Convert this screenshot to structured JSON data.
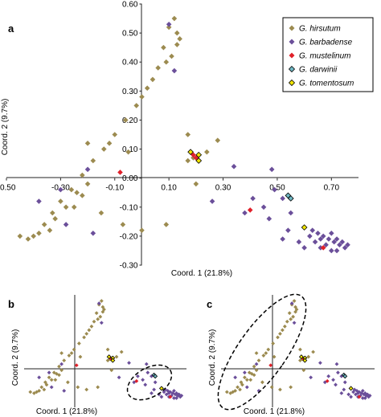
{
  "panels": [
    {
      "letter": "a"
    },
    {
      "letter": "b"
    },
    {
      "letter": "c"
    }
  ],
  "colors": {
    "G. hirsutum": "#9c8b50",
    "G. barbadense": "#6b4f9a",
    "G. mustelinum": "#e0202a",
    "G. darwinii": "#6fb8c4",
    "G. tomentosum": "#f2e600"
  },
  "chart_data": [
    {
      "type": "scatter",
      "panel": "a",
      "xlabel": "Coord. 1 (21.8%)",
      "ylabel": "Coord. 2 (9.7%)",
      "xlim": [
        -0.5,
        0.8
      ],
      "ylim": [
        -0.3,
        0.6
      ],
      "xticks": [
        "-0.50",
        "-0.30",
        "-0.10",
        "0.10",
        "0.30",
        "0.50",
        "0.70"
      ],
      "yticks": [
        "-0.30",
        "-0.20",
        "-0.10",
        "0.00",
        "0.10",
        "0.20",
        "0.30",
        "0.40",
        "0.50",
        "0.60"
      ],
      "legend_position": "top-right",
      "series": [
        {
          "name": "G. hirsutum",
          "marker": "diamond",
          "points": [
            [
              -0.4,
              -0.2
            ],
            [
              -0.36,
              -0.16
            ],
            [
              -0.33,
              -0.12
            ],
            [
              -0.3,
              -0.08
            ],
            [
              -0.26,
              -0.04
            ],
            [
              -0.22,
              0.01
            ],
            [
              -0.18,
              0.06
            ],
            [
              -0.14,
              0.1
            ],
            [
              -0.1,
              0.15
            ],
            [
              -0.06,
              0.2
            ],
            [
              -0.02,
              0.25
            ],
            [
              0.02,
              0.31
            ],
            [
              0.06,
              0.38
            ],
            [
              0.08,
              0.45
            ],
            [
              0.1,
              0.52
            ],
            [
              0.12,
              0.55
            ],
            [
              0.14,
              0.48
            ],
            [
              0.11,
              0.42
            ],
            [
              -0.32,
              -0.14
            ],
            [
              -0.28,
              -0.1
            ],
            [
              -0.24,
              -0.05
            ],
            [
              -0.2,
              -0.02
            ],
            [
              -0.38,
              -0.19
            ],
            [
              -0.42,
              -0.21
            ],
            [
              -0.12,
              0.12
            ],
            [
              0.0,
              0.28
            ],
            [
              0.04,
              0.34
            ],
            [
              0.09,
              0.4
            ],
            [
              0.13,
              0.5
            ],
            [
              -0.45,
              -0.2
            ],
            [
              -0.15,
              -0.12
            ],
            [
              -0.07,
              -0.16
            ],
            [
              0.0,
              -0.18
            ],
            [
              0.09,
              -0.16
            ],
            [
              -0.25,
              -0.1
            ],
            [
              -0.22,
              -0.06
            ],
            [
              0.17,
              0.06
            ],
            [
              0.19,
              0.07
            ],
            [
              -0.2,
              0.12
            ],
            [
              0.24,
              0.09
            ],
            [
              0.28,
              0.13
            ],
            [
              0.17,
              0.15
            ],
            [
              -0.05,
              0.09
            ],
            [
              0.2,
              -0.02
            ],
            [
              -0.34,
              -0.18
            ],
            [
              0.13,
              0.46
            ]
          ]
        },
        {
          "name": "G. barbadense",
          "marker": "diamond",
          "points": [
            [
              0.63,
              -0.18
            ],
            [
              0.65,
              -0.19
            ],
            [
              0.67,
              -0.2
            ],
            [
              0.69,
              -0.21
            ],
            [
              0.71,
              -0.22
            ],
            [
              0.73,
              -0.23
            ],
            [
              0.75,
              -0.24
            ],
            [
              0.66,
              -0.21
            ],
            [
              0.7,
              -0.19
            ],
            [
              0.72,
              -0.21
            ],
            [
              0.68,
              -0.23
            ],
            [
              0.74,
              -0.22
            ],
            [
              0.76,
              -0.23
            ],
            [
              0.62,
              -0.2
            ],
            [
              0.64,
              -0.22
            ],
            [
              0.6,
              -0.17
            ],
            [
              0.66,
              -0.24
            ],
            [
              0.7,
              -0.25
            ],
            [
              0.45,
              -0.1
            ],
            [
              0.47,
              -0.14
            ],
            [
              0.41,
              -0.07
            ],
            [
              0.38,
              -0.12
            ],
            [
              0.54,
              -0.18
            ],
            [
              0.6,
              -0.24
            ],
            [
              0.49,
              -0.04
            ],
            [
              0.52,
              -0.21
            ],
            [
              0.34,
              0.04
            ],
            [
              0.26,
              -0.08
            ],
            [
              0.55,
              -0.12
            ],
            [
              0.72,
              -0.25
            ],
            [
              0.58,
              -0.22
            ],
            [
              0.12,
              0.37
            ],
            [
              0.1,
              0.53
            ],
            [
              -0.3,
              -0.04
            ],
            [
              -0.38,
              -0.08
            ],
            [
              -0.28,
              -0.16
            ],
            [
              -0.18,
              -0.19
            ],
            [
              -0.2,
              0.03
            ],
            [
              0.48,
              0.03
            ],
            [
              0.52,
              -0.07
            ]
          ]
        },
        {
          "name": "G. mustelinum",
          "marker": "diamond",
          "points": [
            [
              0.19,
              0.08
            ],
            [
              -0.08,
              0.02
            ],
            [
              0.4,
              -0.11
            ],
            [
              0.67,
              -0.24
            ],
            [
              0.2,
              0.07
            ]
          ]
        },
        {
          "name": "G. darwinii",
          "marker": "diamond",
          "points": [
            [
              0.54,
              -0.06
            ],
            [
              0.55,
              -0.07
            ]
          ]
        },
        {
          "name": "G. tomentosum",
          "marker": "diamond",
          "points": [
            [
              0.21,
              0.08
            ],
            [
              0.18,
              0.09
            ],
            [
              0.6,
              -0.17
            ],
            [
              0.21,
              0.06
            ]
          ]
        }
      ]
    },
    {
      "type": "scatter",
      "panel": "b",
      "xlabel": "Coord. 1 (21.8%)",
      "ylabel": "Coord. 2 (9.7%)",
      "xlim": [
        -0.5,
        0.8
      ],
      "ylim": [
        -0.3,
        0.6
      ],
      "annotation": "dashed ellipse around a small group of G. hirsutum points near the G. barbadense cluster"
    },
    {
      "type": "scatter",
      "panel": "c",
      "xlabel": "Coord. 1 (21.8%)",
      "ylabel": "Coord. 2 (9.7%)",
      "xlim": [
        -0.5,
        0.8
      ],
      "ylim": [
        -0.3,
        0.6
      ],
      "annotation": "dashed ellipse around the scattered G. barbadense points along the G. hirsutum diagonal"
    }
  ]
}
